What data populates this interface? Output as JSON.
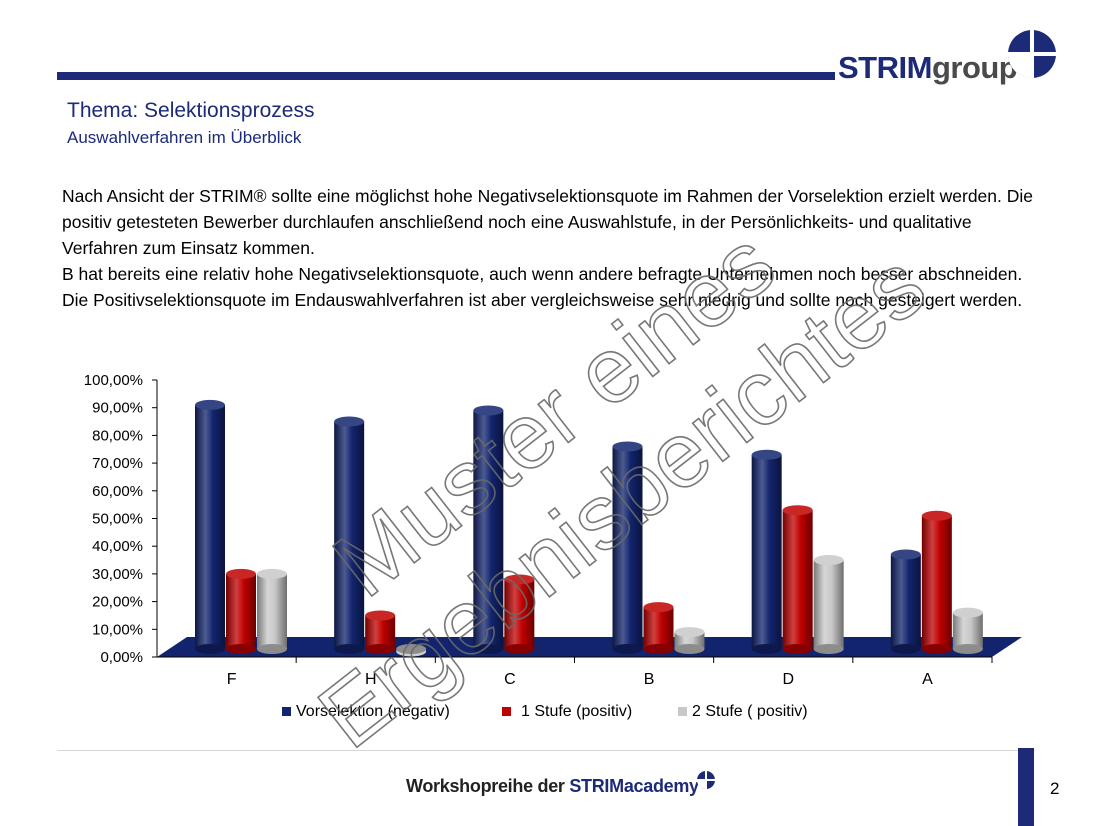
{
  "header": {
    "logo_strim": "STRIM",
    "logo_group": "group",
    "title": "Thema: Selektionsprozess",
    "subtitle": "Auswahlverfahren im Überblick"
  },
  "body": {
    "paragraph1": "Nach Ansicht der STRIM® sollte eine möglichst hohe Negativselektionsquote im Rahmen der Vorselektion erzielt werden. Die positiv getesteten Bewerber durchlaufen anschließend noch eine Auswahlstufe, in der Persönlichkeits- und qualitative Verfahren zum Einsatz kommen.",
    "paragraph2": "B hat bereits eine relativ hohe Negativselektionsquote, auch wenn andere befragte Unternehmen noch besser abschneiden. Die Positivselektionsquote im Endauswahlverfahren ist aber vergleichsweise sehr niedrig und sollte noch gesteigert werden."
  },
  "chart_data": {
    "type": "bar",
    "categories": [
      "F",
      "H",
      "C",
      "B",
      "D",
      "A"
    ],
    "series": [
      {
        "name": "Vorselektion (negativ)",
        "values": [
          91,
          85,
          89,
          76,
          73,
          37
        ],
        "color": "#12246e"
      },
      {
        "name": "1 Stufe (positiv)",
        "values": [
          30,
          15,
          28,
          18,
          53,
          51
        ],
        "color": "#c00000"
      },
      {
        "name": "2 Stufe ( positiv)",
        "values": [
          30,
          2,
          0,
          9,
          35,
          16
        ],
        "color": "#c8c8c8"
      }
    ],
    "yticks": [
      "0,00%",
      "10,00%",
      "20,00%",
      "30,00%",
      "40,00%",
      "50,00%",
      "60,00%",
      "70,00%",
      "80,00%",
      "90,00%",
      "100,00%"
    ],
    "ylim": [
      0,
      100
    ],
    "floor_color": "#12246e",
    "legend": "bottom"
  },
  "watermark": {
    "line1": "Muster eines",
    "line2": "Ergebnisberichtes"
  },
  "footer": {
    "text_prefix": "Workshopreihe der ",
    "text_strim": "STRIM",
    "text_academy": "academy",
    "page_number": "2"
  }
}
